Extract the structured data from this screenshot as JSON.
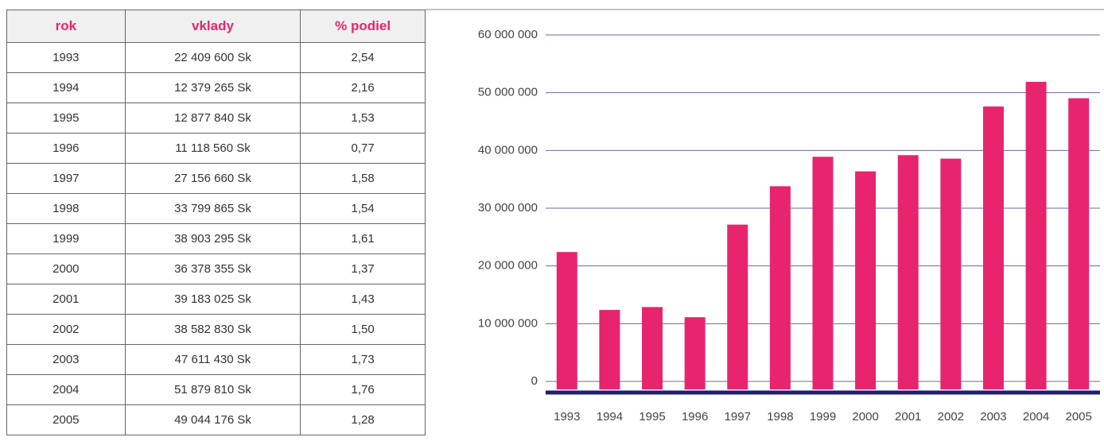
{
  "table": {
    "header": [
      "rok",
      "vklady",
      "% podiel"
    ],
    "rows": [
      [
        "1993",
        "22 409 600 Sk",
        "2,54"
      ],
      [
        "1994",
        "12 379 265 Sk",
        "2,16"
      ],
      [
        "1995",
        "12 877 840 Sk",
        "1,53"
      ],
      [
        "1996",
        "11 118 560 Sk",
        "0,77"
      ],
      [
        "1997",
        "27 156 660 Sk",
        "1,58"
      ],
      [
        "1998",
        "33 799 865 Sk",
        "1,54"
      ],
      [
        "1999",
        "38 903 295 Sk",
        "1,61"
      ],
      [
        "2000",
        "36 378 355 Sk",
        "1,37"
      ],
      [
        "2001",
        "39 183 025 Sk",
        "1,43"
      ],
      [
        "2002",
        "38 582 830 Sk",
        "1,50"
      ],
      [
        "2003",
        "47 611 430 Sk",
        "1,73"
      ],
      [
        "2004",
        "51 879 810 Sk",
        "1,76"
      ],
      [
        "2005",
        "49 044 176 Sk",
        "1,28"
      ]
    ]
  },
  "chart_data": {
    "type": "bar",
    "categories": [
      "1993",
      "1994",
      "1995",
      "1996",
      "1997",
      "1998",
      "1999",
      "2000",
      "2001",
      "2002",
      "2003",
      "2004",
      "2005"
    ],
    "values": [
      22409600,
      12379265,
      12877840,
      11118560,
      27156660,
      33799865,
      38903295,
      36378355,
      39183025,
      38582830,
      47611430,
      51879810,
      49044176
    ],
    "color": "#e8246f",
    "ylim": [
      0,
      60000000
    ],
    "yticks": [
      0,
      {
        "value": 10000000,
        "label": "10 000 000"
      },
      {
        "value": 20000000,
        "label": "20 000 000"
      },
      {
        "value": 30000000,
        "label": "30 000 000"
      },
      {
        "value": 40000000,
        "label": "40 000 000"
      },
      {
        "value": 50000000,
        "label": "50 000 000"
      },
      {
        "value": 60000000,
        "label": "60 000 000"
      }
    ],
    "grid": true
  }
}
